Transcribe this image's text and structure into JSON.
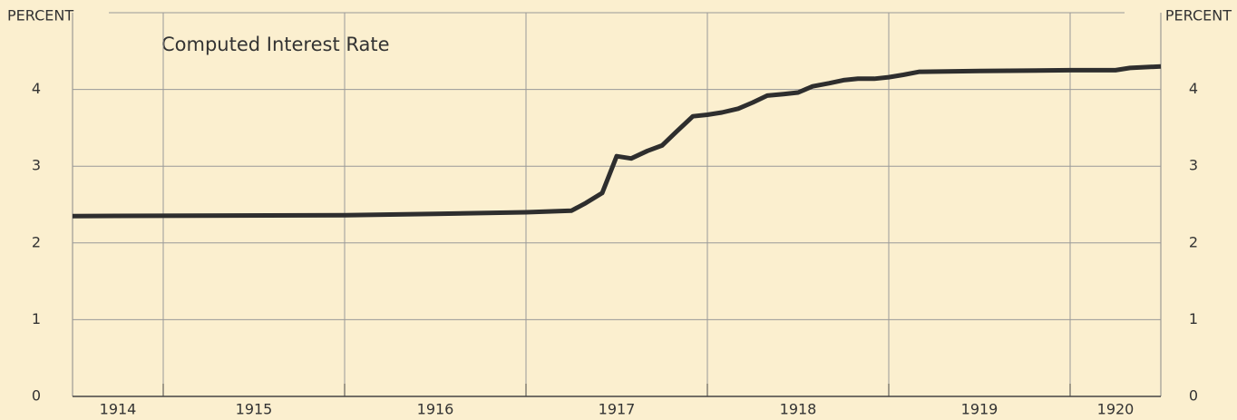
{
  "chart_data": {
    "type": "line",
    "title": "Computed Interest Rate",
    "ylabel_left": "PERCENT",
    "ylabel_right": "PERCENT",
    "x": [
      1914.5,
      1916.0,
      1916.5,
      1917.0,
      1917.25,
      1917.33,
      1917.42,
      1917.5,
      1917.58,
      1917.67,
      1917.75,
      1917.83,
      1917.92,
      1918.0,
      1918.08,
      1918.17,
      1918.25,
      1918.33,
      1918.42,
      1918.5,
      1918.58,
      1918.67,
      1918.75,
      1918.83,
      1918.92,
      1919.0,
      1919.08,
      1919.17,
      1919.5,
      1920.0,
      1920.25,
      1920.33,
      1920.5
    ],
    "series": [
      {
        "name": "Computed Interest Rate",
        "color": "#2e2e2e",
        "values": [
          2.35,
          2.36,
          2.38,
          2.4,
          2.42,
          2.52,
          2.65,
          3.13,
          3.1,
          3.2,
          3.27,
          3.45,
          3.65,
          3.67,
          3.7,
          3.75,
          3.83,
          3.92,
          3.94,
          3.96,
          4.04,
          4.08,
          4.12,
          4.14,
          4.14,
          4.16,
          4.19,
          4.23,
          4.24,
          4.25,
          4.25,
          4.28,
          4.3
        ]
      }
    ],
    "xlim": [
      1914.5,
      1920.5
    ],
    "xticks": [
      {
        "value": 1914.75,
        "label": "1914"
      },
      {
        "value": 1915.5,
        "label": "1915"
      },
      {
        "value": 1916.5,
        "label": "1916"
      },
      {
        "value": 1917.5,
        "label": "1917"
      },
      {
        "value": 1918.5,
        "label": "1918"
      },
      {
        "value": 1919.5,
        "label": "1919"
      },
      {
        "value": 1920.25,
        "label": "1920"
      }
    ],
    "xgrid": [
      1915,
      1916,
      1917,
      1918,
      1919,
      1920
    ],
    "ylim": [
      0,
      5
    ],
    "yticks": [
      0,
      1,
      2,
      3,
      4
    ],
    "grid": true
  }
}
